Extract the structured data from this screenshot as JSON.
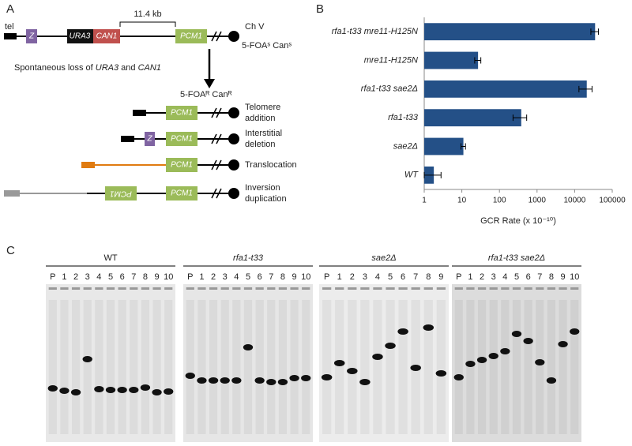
{
  "panel_a": {
    "label": "A",
    "tel": "tel",
    "z": "Z",
    "ura3": "URA3",
    "can1": "CAN1",
    "distance": "11.4 kb",
    "pcm1": "PCM1",
    "chromosome": "Ch V",
    "parent_phenotype": "5-FOAˢ Canˢ",
    "loss_text": [
      "Spontaneous loss of ",
      "URA3",
      " and ",
      "CAN1"
    ],
    "gcr_phenotype": "5-FOAᴿ Canᴿ",
    "outcomes": [
      [
        "Telomere",
        "addition"
      ],
      [
        "Interstitial",
        "deletion"
      ],
      [
        "Translocation"
      ],
      [
        "Inversion",
        "duplication"
      ]
    ]
  },
  "chart_data": {
    "type": "bar",
    "orientation": "horizontal",
    "label": "B",
    "categories": [
      "rfa1-t33 mre11-H125N",
      "mre11-H125N",
      "rfa1-t33 sae2Δ",
      "rfa1-t33",
      "sae2Δ",
      "WT"
    ],
    "values": [
      35000,
      27,
      21000,
      380,
      11,
      1.8
    ],
    "errors": [
      8000,
      5,
      8000,
      150,
      1.5,
      1
    ],
    "color": "#245087",
    "xlabel": "GCR Rate (x 10⁻¹⁰)",
    "xscale": "log",
    "xlim": [
      1,
      100000
    ],
    "xticks": [
      1,
      10,
      100,
      1000,
      10000,
      100000
    ]
  },
  "panel_c": {
    "label": "C",
    "gels": [
      {
        "title": "WT",
        "lanes": [
          "P",
          "1",
          "2",
          "3",
          "4",
          "5",
          "6",
          "7",
          "8",
          "9",
          "10"
        ]
      },
      {
        "title": "rfa1-t33",
        "lanes": [
          "P",
          "1",
          "2",
          "3",
          "4",
          "5",
          "6",
          "7",
          "8",
          "9",
          "10"
        ]
      },
      {
        "title": "sae2Δ",
        "lanes": [
          "P",
          "1",
          "2",
          "3",
          "4",
          "5",
          "6",
          "7",
          "8",
          "9"
        ]
      },
      {
        "title": "rfa1-t33 sae2Δ",
        "lanes": [
          "P",
          "1",
          "2",
          "3",
          "4",
          "5",
          "6",
          "7",
          "8",
          "9",
          "10"
        ]
      }
    ]
  }
}
